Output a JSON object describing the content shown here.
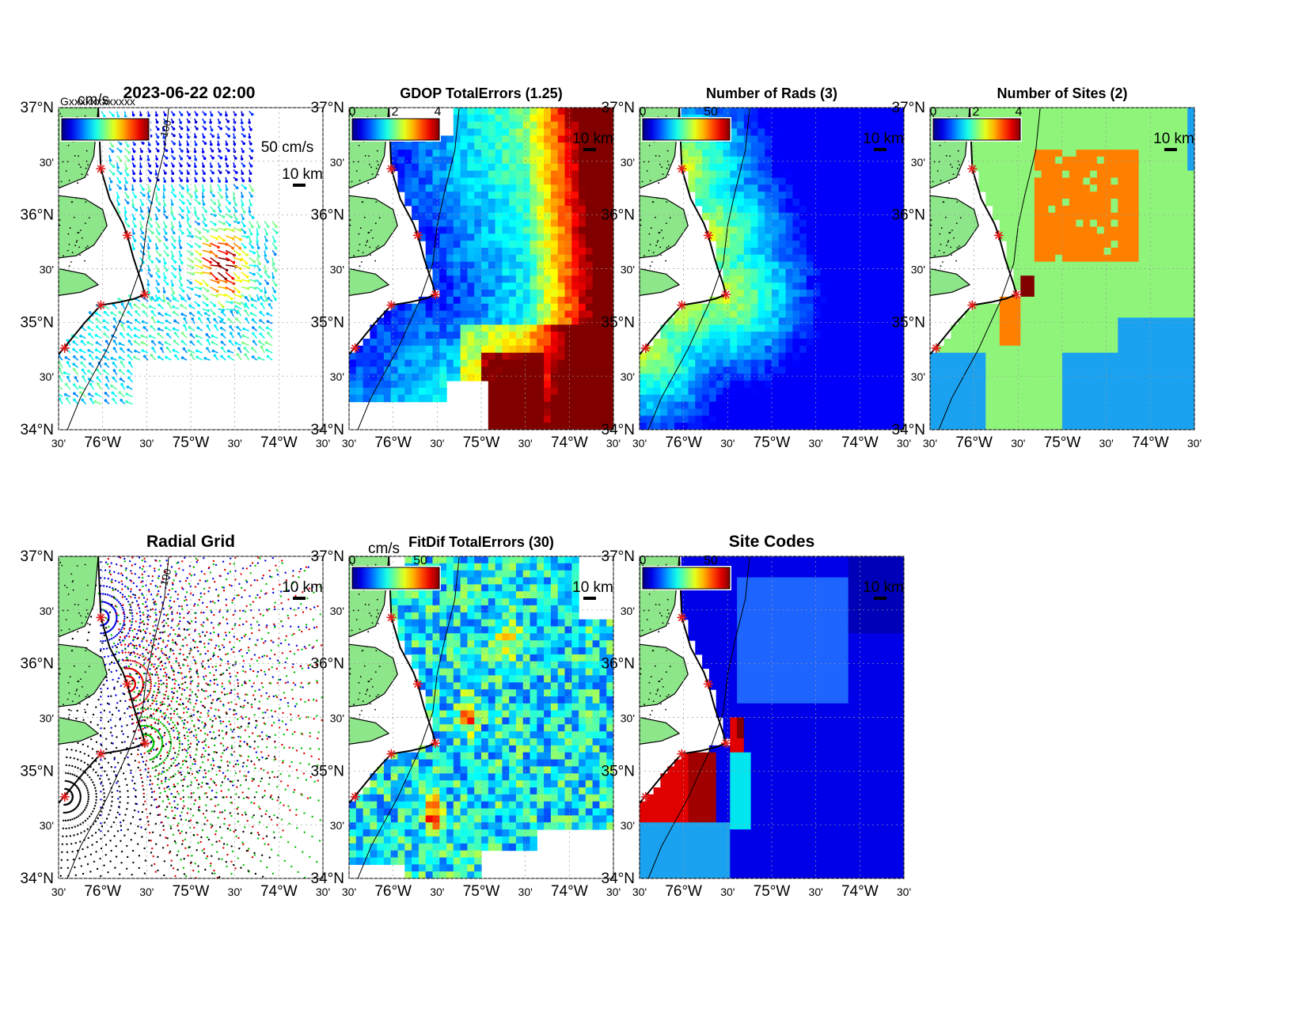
{
  "figure": {
    "timestamp_title": "2023-06-22 02:00",
    "overlapped_legend_text": "Gxxxxxxxxxxxx"
  },
  "axes_labels": {
    "lat_ticks": [
      "37°N",
      "30'",
      "36°N",
      "30'",
      "35°N",
      "30'",
      "34°N"
    ],
    "lon_ticks": [
      "30'",
      "76°W",
      "30'",
      "75°W",
      "30'",
      "74°W",
      "30'"
    ]
  },
  "panels": [
    {
      "id": "currents",
      "title": "",
      "colorbar_unit": "cm/s",
      "colorbar_ticks": [],
      "scale_label": "10 km",
      "vector_scale_label": "50 cm/s",
      "contour_label": "100"
    },
    {
      "id": "gdop",
      "title": "GDOP TotalErrors (1.25)",
      "colorbar_unit": "",
      "colorbar_ticks": [
        "0",
        "2",
        "4"
      ],
      "scale_label": "10 km",
      "contour_label": "1.25"
    },
    {
      "id": "nrads",
      "title": "Number of Rads (3)",
      "colorbar_unit": "",
      "colorbar_ticks": [
        "0",
        "50"
      ],
      "scale_label": "10 km",
      "contour_label": "3"
    },
    {
      "id": "nsites",
      "title": "Number of Sites (2)",
      "colorbar_unit": "",
      "colorbar_ticks": [
        "0",
        "2",
        "4"
      ],
      "scale_label": "10 km",
      "contour_label": "2"
    },
    {
      "id": "radgrid",
      "title": "Radial Grid",
      "colorbar_unit": "",
      "colorbar_ticks": [],
      "scale_label": "10 km",
      "contour_label": "100"
    },
    {
      "id": "fitdif",
      "title": "FitDif TotalErrors (30)",
      "colorbar_unit": "cm/s",
      "colorbar_ticks": [
        "0",
        "50"
      ],
      "scale_label": "10 km",
      "contour_label": "30"
    },
    {
      "id": "sitecodes",
      "title": "Site Codes",
      "colorbar_unit": "",
      "colorbar_ticks": [
        "0",
        "50"
      ],
      "scale_label": "10 km",
      "contour_label": ""
    }
  ],
  "colors": {
    "land": "#8ee68a",
    "site_marker": "#e11b1b",
    "jet": [
      "#00008f",
      "#0000ff",
      "#0080ff",
      "#00ffff",
      "#80ff80",
      "#ffff00",
      "#ff8000",
      "#ff0000",
      "#800000"
    ],
    "site_values": {
      "one": "#1aa2f0",
      "two": "#8ef57a",
      "three": "#ff8000",
      "four": "#800000"
    },
    "radial_sites": [
      "#0000e0",
      "#e00000",
      "#00c000",
      "#000000"
    ]
  },
  "chart_data": {
    "type": "heatmap",
    "extent": {
      "lon": [
        -76.5,
        -73.5
      ],
      "lat": [
        34.0,
        37.0
      ]
    },
    "sites": [
      {
        "lon": -76.02,
        "lat": 36.43
      },
      {
        "lon": -75.72,
        "lat": 35.81
      },
      {
        "lon": -75.52,
        "lat": 35.26
      },
      {
        "lon": -76.02,
        "lat": 35.16
      },
      {
        "lon": -76.43,
        "lat": 34.76
      }
    ],
    "gdop": {
      "colorbar_range": [
        0,
        4
      ],
      "contour_level": 1.25
    },
    "number_of_rads": {
      "colorbar_range": [
        0,
        70
      ],
      "contour_level": 3
    },
    "number_of_sites": {
      "colorbar_range": [
        0,
        4
      ],
      "contour_level": 2
    },
    "fitdif": {
      "colorbar_range": [
        0,
        70
      ],
      "contour_level": 30,
      "unit": "cm/s"
    },
    "currents": {
      "unit": "cm/s",
      "reference_vector": "50 cm/s",
      "bathymetry_contour": 100
    },
    "site_codes": {
      "colorbar_range": [
        0,
        70
      ]
    }
  }
}
